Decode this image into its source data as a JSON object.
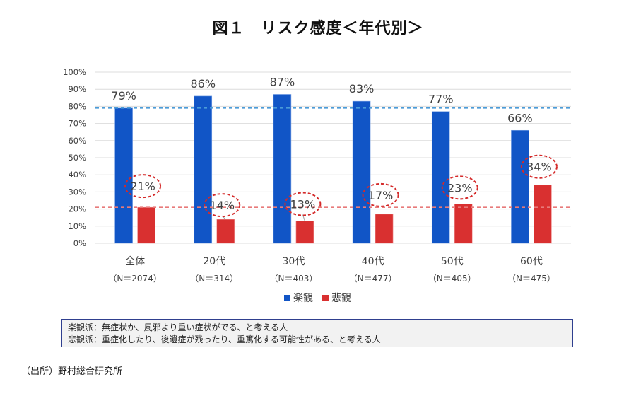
{
  "chart_data": {
    "type": "bar",
    "title": "図１　リスク感度＜年代別＞",
    "categories": [
      "全体",
      "20代",
      "30代",
      "40代",
      "50代",
      "60代"
    ],
    "category_sublabels": [
      "（N＝2074）",
      "（N＝314）",
      "（N＝403）",
      "（N＝477）",
      "（N＝405）",
      "（N＝475）"
    ],
    "series": [
      {
        "name": "楽観",
        "color": "#1155c6",
        "values": [
          79,
          86,
          87,
          83,
          77,
          66
        ],
        "labels": [
          "79%",
          "86%",
          "87%",
          "83%",
          "77%",
          "66%"
        ]
      },
      {
        "name": "悲観",
        "color": "#d93030",
        "values": [
          21,
          14,
          13,
          17,
          23,
          34
        ],
        "labels": [
          "21%",
          "14%",
          "13%",
          "17%",
          "23%",
          "34%"
        ]
      }
    ],
    "reference_lines": [
      {
        "series": "楽観",
        "value": 79,
        "color": "#4a9bd8",
        "style": "dashed"
      },
      {
        "series": "悲観",
        "value": 21,
        "color": "#e87a7a",
        "style": "dashed"
      }
    ],
    "annotation": "悲観 data labels circled with red dashed ellipses",
    "xlabel": "",
    "ylabel": "",
    "ylim": [
      0,
      100
    ],
    "yticks": [
      "0%",
      "10%",
      "20%",
      "30%",
      "40%",
      "50%",
      "60%",
      "70%",
      "80%",
      "90%",
      "100%"
    ],
    "grid": true,
    "legend_position": "bottom-center"
  },
  "note": {
    "line1": "楽観派：無症状か、風邪より重い症状がでる、と考える人",
    "line2": "悲観派：重症化したり、後遺症が残ったり、重篤化する可能性がある、と考える人"
  },
  "source": "（出所）野村総合研究所"
}
